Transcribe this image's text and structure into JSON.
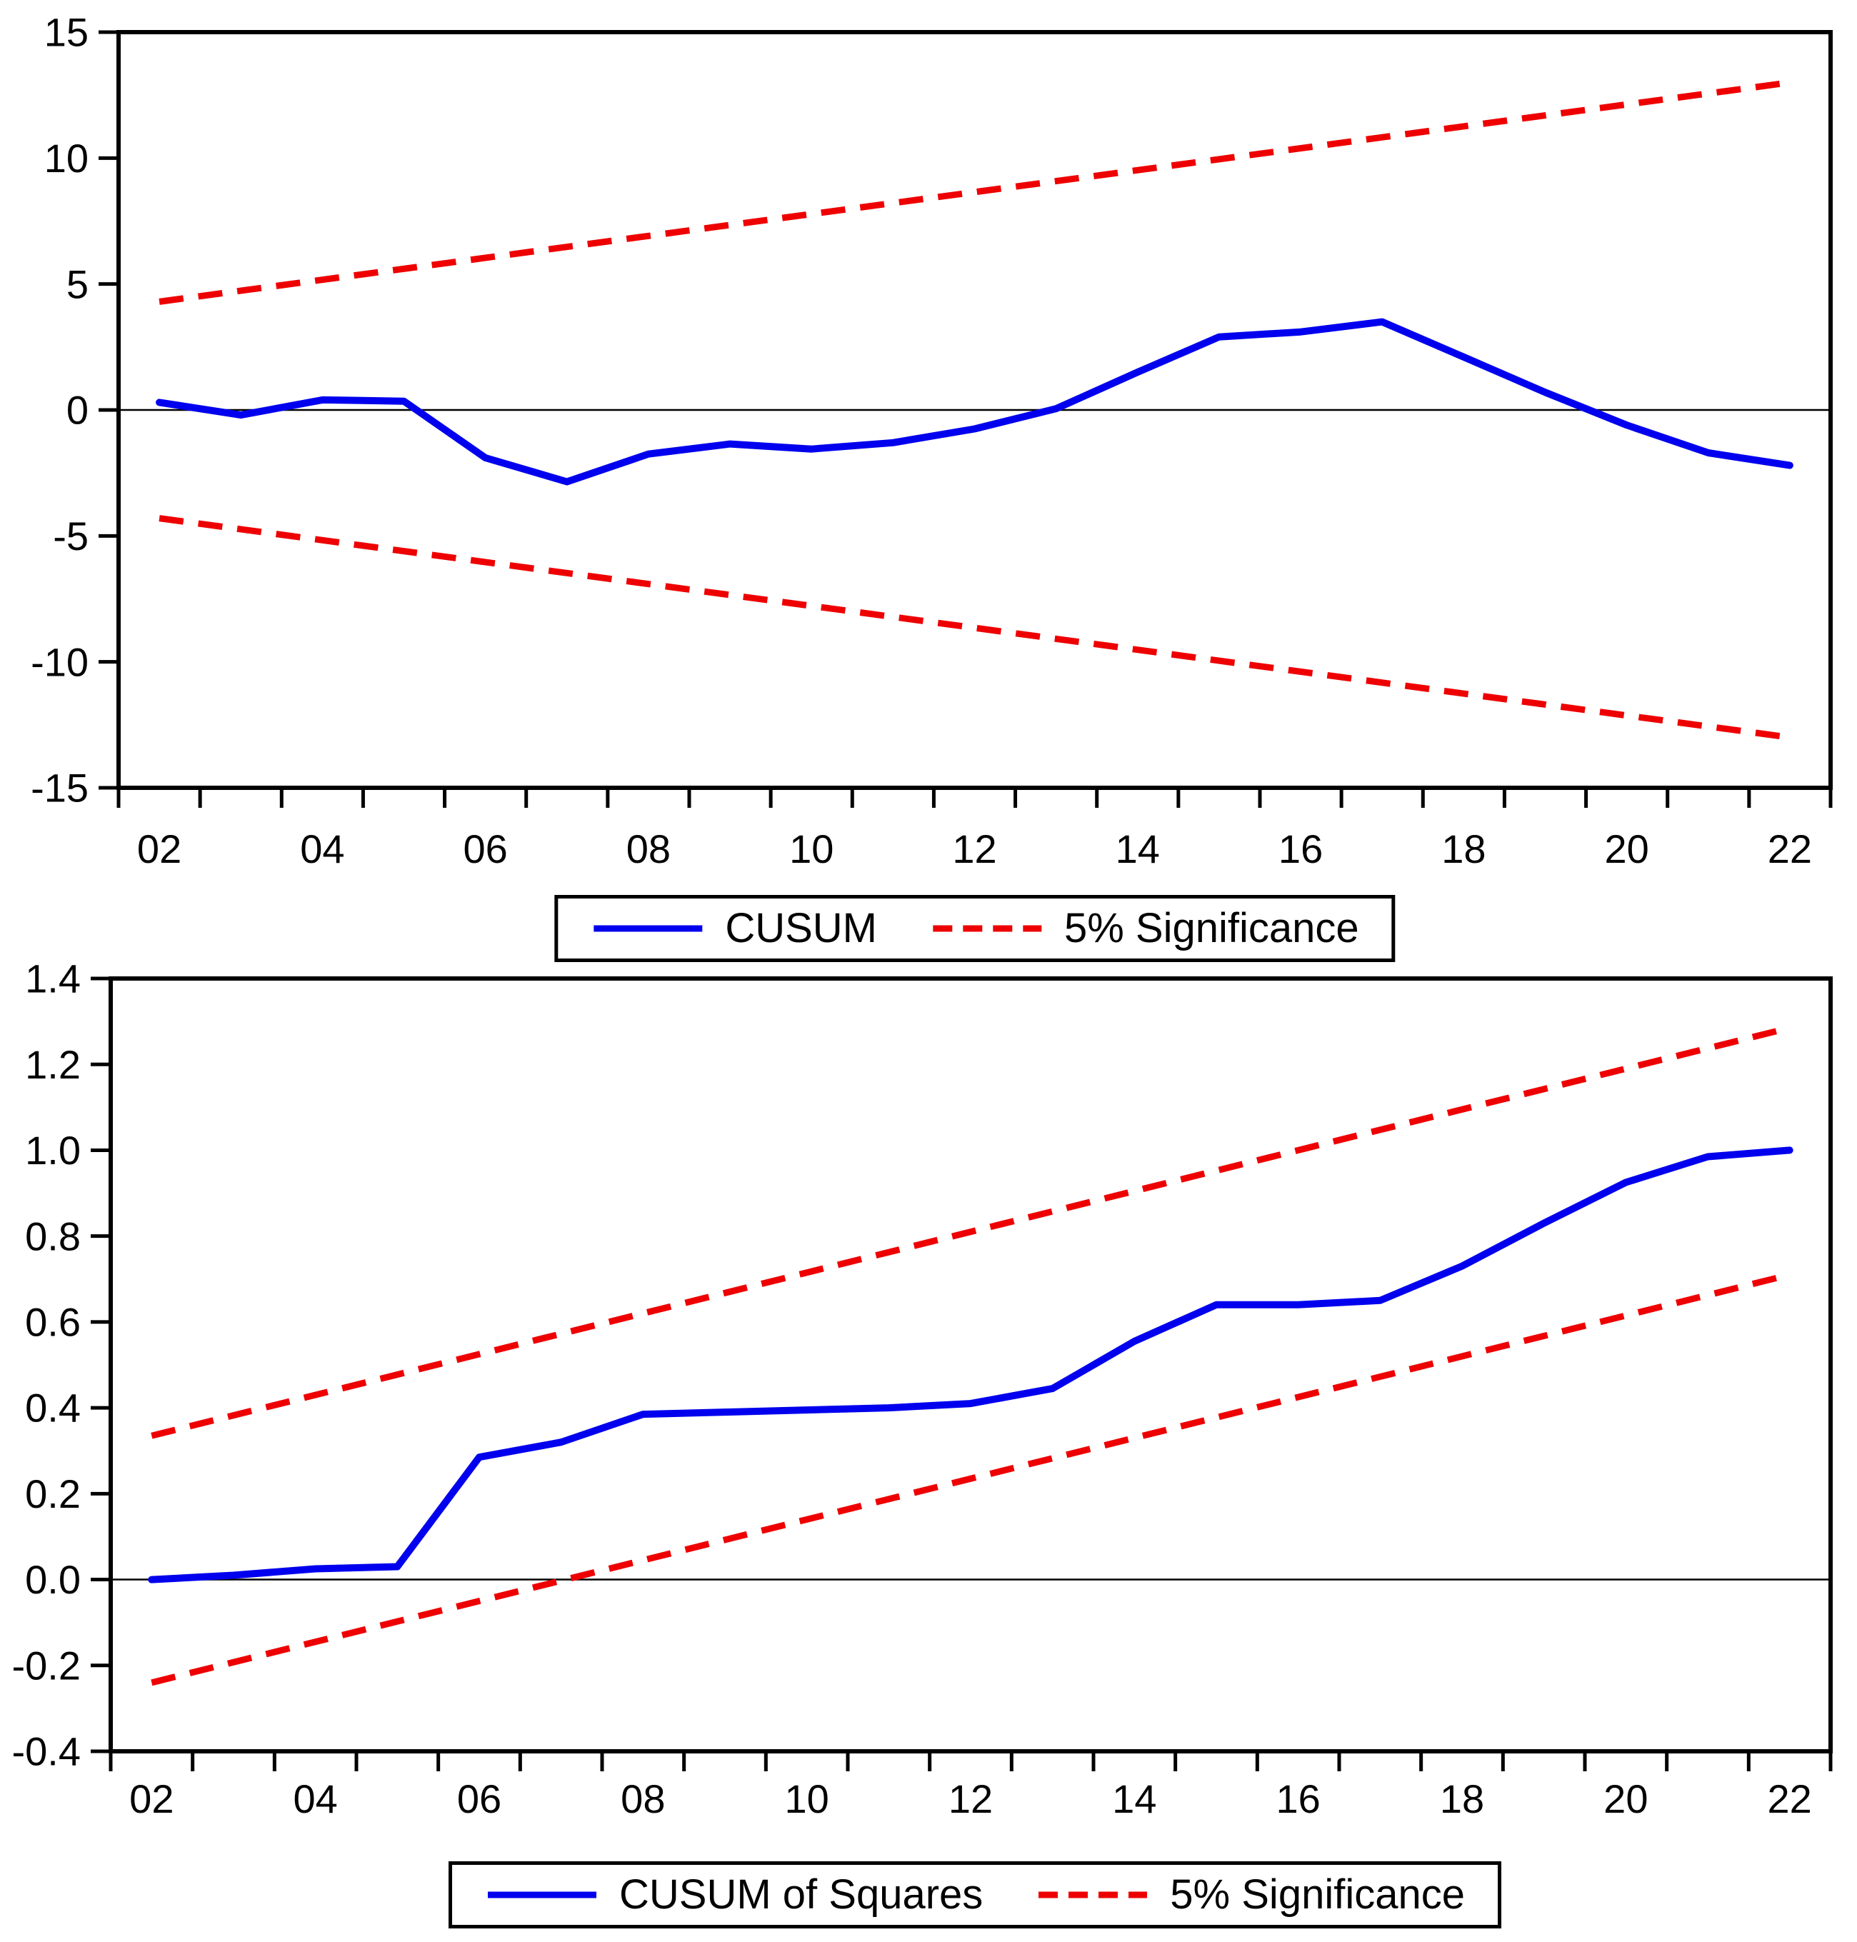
{
  "figure": {
    "background": "#ffffff",
    "axis_color": "#000000",
    "series_color": "#0000EE",
    "significance_color": "#EE0000"
  },
  "chart_data": [
    {
      "name": "cusum",
      "type": "line",
      "title": "",
      "xlabel": "",
      "ylabel": "",
      "x_tick_labels": [
        "02",
        "04",
        "06",
        "08",
        "10",
        "12",
        "14",
        "16",
        "18",
        "20",
        "22"
      ],
      "y_tick_values": [
        15,
        10,
        5,
        0,
        -5,
        -10,
        -15
      ],
      "y_tick_labels": [
        "15",
        "10",
        "5",
        "0",
        "-5",
        "-10",
        "-15"
      ],
      "ylim": [
        -15,
        15
      ],
      "x_years": [
        2002,
        2003,
        2004,
        2005,
        2006,
        2007,
        2008,
        2009,
        2010,
        2011,
        2012,
        2013,
        2014,
        2015,
        2016,
        2017,
        2018,
        2019,
        2020,
        2021,
        2022
      ],
      "series": [
        {
          "name": "CUSUM",
          "style": "solid",
          "color": "#0000EE",
          "values": [
            0.3,
            -0.2,
            0.4,
            0.35,
            -1.9,
            -2.85,
            -1.75,
            -1.35,
            -1.55,
            -1.3,
            -0.75,
            0.05,
            1.5,
            2.9,
            3.1,
            3.5,
            2.1,
            0.7,
            -0.6,
            -1.7,
            -2.2
          ]
        },
        {
          "name": "5% Significance",
          "style": "dashed",
          "color": "#EE0000",
          "upper_bound": {
            "start_value": 4.3,
            "end_value": 13.0
          },
          "lower_bound": {
            "start_value": -4.3,
            "end_value": -13.0
          }
        }
      ],
      "zero_line": true,
      "grid": false,
      "legend_position": "bottom-center",
      "legend": [
        {
          "label": "CUSUM"
        },
        {
          "label": "5% Significance"
        }
      ]
    },
    {
      "name": "cusum-of-squares",
      "type": "line",
      "title": "",
      "xlabel": "",
      "ylabel": "",
      "x_tick_labels": [
        "02",
        "04",
        "06",
        "08",
        "10",
        "12",
        "14",
        "16",
        "18",
        "20",
        "22"
      ],
      "y_tick_values": [
        1.4,
        1.2,
        1.0,
        0.8,
        0.6,
        0.4,
        0.2,
        0.0,
        -0.2,
        -0.4
      ],
      "y_tick_labels": [
        "1.4",
        "1.2",
        "1.0",
        "0.8",
        "0.6",
        "0.4",
        "0.2",
        "0.0",
        "-0.2",
        "-0.4"
      ],
      "ylim": [
        -0.4,
        1.4
      ],
      "x_years": [
        2002,
        2003,
        2004,
        2005,
        2006,
        2007,
        2008,
        2009,
        2010,
        2011,
        2012,
        2013,
        2014,
        2015,
        2016,
        2017,
        2018,
        2019,
        2020,
        2021,
        2022
      ],
      "series": [
        {
          "name": "CUSUM of Squares",
          "style": "solid",
          "color": "#0000EE",
          "values": [
            0.0,
            0.01,
            0.025,
            0.03,
            0.285,
            0.32,
            0.385,
            0.39,
            0.395,
            0.4,
            0.41,
            0.445,
            0.555,
            0.64,
            0.64,
            0.65,
            0.73,
            0.83,
            0.925,
            0.985,
            1.0
          ]
        },
        {
          "name": "5% Significance",
          "style": "dashed",
          "color": "#EE0000",
          "upper_bound": {
            "start_value": 0.335,
            "end_value": 1.285
          },
          "lower_bound": {
            "start_value": -0.24,
            "end_value": 0.71
          }
        }
      ],
      "zero_line": true,
      "grid": false,
      "legend_position": "bottom-center",
      "legend": [
        {
          "label": "CUSUM of Squares"
        },
        {
          "label": "5% Significance"
        }
      ]
    }
  ]
}
